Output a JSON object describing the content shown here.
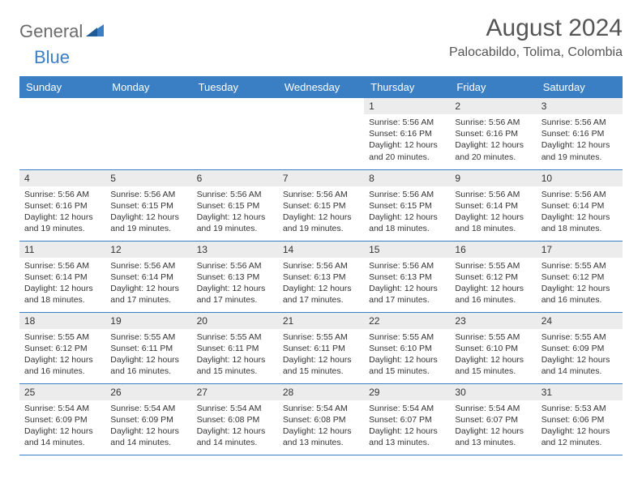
{
  "logo": {
    "general": "General",
    "blue": "Blue"
  },
  "header": {
    "title": "August 2024",
    "location": "Palocabildo, Tolima, Colombia"
  },
  "colors": {
    "header_bg": "#3a7fc4",
    "header_text": "#ffffff",
    "daynum_bg": "#ececec",
    "row_border": "#3a7fc4",
    "logo_gray": "#6b6b6b",
    "logo_blue": "#3a7fc4"
  },
  "weekdays": [
    "Sunday",
    "Monday",
    "Tuesday",
    "Wednesday",
    "Thursday",
    "Friday",
    "Saturday"
  ],
  "weeks": [
    [
      {
        "day": "",
        "sunrise": "",
        "sunset": "",
        "daylight": ""
      },
      {
        "day": "",
        "sunrise": "",
        "sunset": "",
        "daylight": ""
      },
      {
        "day": "",
        "sunrise": "",
        "sunset": "",
        "daylight": ""
      },
      {
        "day": "",
        "sunrise": "",
        "sunset": "",
        "daylight": ""
      },
      {
        "day": "1",
        "sunrise": "Sunrise: 5:56 AM",
        "sunset": "Sunset: 6:16 PM",
        "daylight": "Daylight: 12 hours and 20 minutes."
      },
      {
        "day": "2",
        "sunrise": "Sunrise: 5:56 AM",
        "sunset": "Sunset: 6:16 PM",
        "daylight": "Daylight: 12 hours and 20 minutes."
      },
      {
        "day": "3",
        "sunrise": "Sunrise: 5:56 AM",
        "sunset": "Sunset: 6:16 PM",
        "daylight": "Daylight: 12 hours and 19 minutes."
      }
    ],
    [
      {
        "day": "4",
        "sunrise": "Sunrise: 5:56 AM",
        "sunset": "Sunset: 6:16 PM",
        "daylight": "Daylight: 12 hours and 19 minutes."
      },
      {
        "day": "5",
        "sunrise": "Sunrise: 5:56 AM",
        "sunset": "Sunset: 6:15 PM",
        "daylight": "Daylight: 12 hours and 19 minutes."
      },
      {
        "day": "6",
        "sunrise": "Sunrise: 5:56 AM",
        "sunset": "Sunset: 6:15 PM",
        "daylight": "Daylight: 12 hours and 19 minutes."
      },
      {
        "day": "7",
        "sunrise": "Sunrise: 5:56 AM",
        "sunset": "Sunset: 6:15 PM",
        "daylight": "Daylight: 12 hours and 19 minutes."
      },
      {
        "day": "8",
        "sunrise": "Sunrise: 5:56 AM",
        "sunset": "Sunset: 6:15 PM",
        "daylight": "Daylight: 12 hours and 18 minutes."
      },
      {
        "day": "9",
        "sunrise": "Sunrise: 5:56 AM",
        "sunset": "Sunset: 6:14 PM",
        "daylight": "Daylight: 12 hours and 18 minutes."
      },
      {
        "day": "10",
        "sunrise": "Sunrise: 5:56 AM",
        "sunset": "Sunset: 6:14 PM",
        "daylight": "Daylight: 12 hours and 18 minutes."
      }
    ],
    [
      {
        "day": "11",
        "sunrise": "Sunrise: 5:56 AM",
        "sunset": "Sunset: 6:14 PM",
        "daylight": "Daylight: 12 hours and 18 minutes."
      },
      {
        "day": "12",
        "sunrise": "Sunrise: 5:56 AM",
        "sunset": "Sunset: 6:14 PM",
        "daylight": "Daylight: 12 hours and 17 minutes."
      },
      {
        "day": "13",
        "sunrise": "Sunrise: 5:56 AM",
        "sunset": "Sunset: 6:13 PM",
        "daylight": "Daylight: 12 hours and 17 minutes."
      },
      {
        "day": "14",
        "sunrise": "Sunrise: 5:56 AM",
        "sunset": "Sunset: 6:13 PM",
        "daylight": "Daylight: 12 hours and 17 minutes."
      },
      {
        "day": "15",
        "sunrise": "Sunrise: 5:56 AM",
        "sunset": "Sunset: 6:13 PM",
        "daylight": "Daylight: 12 hours and 17 minutes."
      },
      {
        "day": "16",
        "sunrise": "Sunrise: 5:55 AM",
        "sunset": "Sunset: 6:12 PM",
        "daylight": "Daylight: 12 hours and 16 minutes."
      },
      {
        "day": "17",
        "sunrise": "Sunrise: 5:55 AM",
        "sunset": "Sunset: 6:12 PM",
        "daylight": "Daylight: 12 hours and 16 minutes."
      }
    ],
    [
      {
        "day": "18",
        "sunrise": "Sunrise: 5:55 AM",
        "sunset": "Sunset: 6:12 PM",
        "daylight": "Daylight: 12 hours and 16 minutes."
      },
      {
        "day": "19",
        "sunrise": "Sunrise: 5:55 AM",
        "sunset": "Sunset: 6:11 PM",
        "daylight": "Daylight: 12 hours and 16 minutes."
      },
      {
        "day": "20",
        "sunrise": "Sunrise: 5:55 AM",
        "sunset": "Sunset: 6:11 PM",
        "daylight": "Daylight: 12 hours and 15 minutes."
      },
      {
        "day": "21",
        "sunrise": "Sunrise: 5:55 AM",
        "sunset": "Sunset: 6:11 PM",
        "daylight": "Daylight: 12 hours and 15 minutes."
      },
      {
        "day": "22",
        "sunrise": "Sunrise: 5:55 AM",
        "sunset": "Sunset: 6:10 PM",
        "daylight": "Daylight: 12 hours and 15 minutes."
      },
      {
        "day": "23",
        "sunrise": "Sunrise: 5:55 AM",
        "sunset": "Sunset: 6:10 PM",
        "daylight": "Daylight: 12 hours and 15 minutes."
      },
      {
        "day": "24",
        "sunrise": "Sunrise: 5:55 AM",
        "sunset": "Sunset: 6:09 PM",
        "daylight": "Daylight: 12 hours and 14 minutes."
      }
    ],
    [
      {
        "day": "25",
        "sunrise": "Sunrise: 5:54 AM",
        "sunset": "Sunset: 6:09 PM",
        "daylight": "Daylight: 12 hours and 14 minutes."
      },
      {
        "day": "26",
        "sunrise": "Sunrise: 5:54 AM",
        "sunset": "Sunset: 6:09 PM",
        "daylight": "Daylight: 12 hours and 14 minutes."
      },
      {
        "day": "27",
        "sunrise": "Sunrise: 5:54 AM",
        "sunset": "Sunset: 6:08 PM",
        "daylight": "Daylight: 12 hours and 14 minutes."
      },
      {
        "day": "28",
        "sunrise": "Sunrise: 5:54 AM",
        "sunset": "Sunset: 6:08 PM",
        "daylight": "Daylight: 12 hours and 13 minutes."
      },
      {
        "day": "29",
        "sunrise": "Sunrise: 5:54 AM",
        "sunset": "Sunset: 6:07 PM",
        "daylight": "Daylight: 12 hours and 13 minutes."
      },
      {
        "day": "30",
        "sunrise": "Sunrise: 5:54 AM",
        "sunset": "Sunset: 6:07 PM",
        "daylight": "Daylight: 12 hours and 13 minutes."
      },
      {
        "day": "31",
        "sunrise": "Sunrise: 5:53 AM",
        "sunset": "Sunset: 6:06 PM",
        "daylight": "Daylight: 12 hours and 12 minutes."
      }
    ]
  ]
}
